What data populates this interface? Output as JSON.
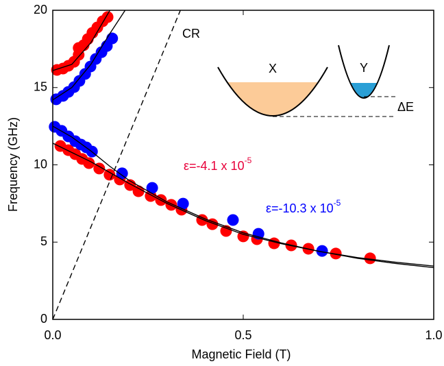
{
  "chart_data": {
    "type": "scatter",
    "x_label": "Magnetic Field (T)",
    "y_label": "Frequency (GHz)",
    "xlim": [
      0,
      1
    ],
    "ylim": [
      0,
      20
    ],
    "xticks": [
      {
        "value": 0,
        "label": "0.0"
      },
      {
        "value": 0.5,
        "label": "0.5"
      },
      {
        "value": 1,
        "label": "1.0"
      }
    ],
    "yticks": [
      0,
      5,
      10,
      15,
      20
    ],
    "grid": false,
    "series": [
      {
        "color": "#ff0000",
        "x": [
          0.02,
          0.041,
          0.059,
          0.077,
          0.095,
          0.122,
          0.149,
          0.176,
          0.203,
          0.225,
          0.257,
          0.284,
          0.311,
          0.338,
          0.392,
          0.419,
          0.455,
          0.5,
          0.536,
          0.581,
          0.626,
          0.671,
          0.743,
          0.833,
          0.011,
          0.027,
          0.041,
          0.056,
          0.068,
          0.068,
          0.081,
          0.092,
          0.104,
          0.117,
          0.131,
          0.144
        ],
        "values": [
          11.22,
          10.95,
          10.69,
          10.38,
          10.11,
          9.76,
          9.36,
          9.05,
          8.69,
          8.29,
          7.98,
          7.72,
          7.41,
          7.1,
          6.43,
          6.16,
          5.72,
          5.37,
          5.19,
          4.92,
          4.79,
          4.57,
          4.26,
          3.95,
          16.14,
          16.23,
          16.41,
          16.67,
          17.12,
          17.56,
          17.74,
          18.14,
          18.54,
          18.89,
          19.29,
          19.56
        ]
      },
      {
        "color": "#0000ff",
        "x": [
          0.009,
          0.027,
          0.041,
          0.056,
          0.07,
          0.085,
          0.099,
          0.113,
          0.128,
          0.142,
          0.156,
          0.005,
          0.023,
          0.041,
          0.059,
          0.074,
          0.088,
          0.103,
          0.182,
          0.261,
          0.342,
          0.473,
          0.54,
          0.707
        ],
        "values": [
          14.24,
          14.46,
          14.72,
          15.03,
          15.43,
          15.88,
          16.36,
          16.85,
          17.29,
          17.69,
          18.18,
          12.46,
          12.2,
          11.84,
          11.53,
          11.31,
          11.13,
          10.86,
          9.45,
          8.51,
          7.49,
          6.43,
          5.54,
          4.43
        ]
      }
    ],
    "lines": [
      {
        "color": "#000000",
        "x": [
          0.0,
          0.1,
          0.2,
          0.3,
          0.4,
          0.5,
          0.6,
          0.7,
          0.8,
          0.9,
          1.0
        ],
        "values": [
          11.4,
          10.2,
          8.8,
          7.5,
          6.4,
          5.5,
          4.9,
          4.4,
          4.0,
          3.7,
          3.45
        ]
      },
      {
        "color": "#000000",
        "x": [
          0.0,
          0.05,
          0.1,
          0.15,
          0.2,
          0.3,
          0.4,
          0.5,
          0.6,
          0.7,
          0.8,
          0.9,
          1.0
        ],
        "values": [
          12.5,
          11.8,
          10.9,
          9.9,
          9.0,
          7.6,
          6.5,
          5.6,
          4.95,
          4.4,
          3.95,
          3.62,
          3.35
        ]
      },
      {
        "color": "#000000",
        "x": [
          0.0,
          0.05,
          0.1,
          0.15,
          0.19
        ],
        "values": [
          14.2,
          15.0,
          16.5,
          18.5,
          20
        ]
      },
      {
        "color": "#000000",
        "x": [
          0.0,
          0.05,
          0.1,
          0.15
        ],
        "values": [
          16.1,
          16.5,
          17.9,
          20
        ]
      },
      {
        "name": "CR",
        "color": "#000000",
        "dashed": true,
        "x": [
          0,
          0.335
        ],
        "values": [
          0,
          20
        ]
      }
    ],
    "annotations": [
      {
        "text": "ε=-4.1 x 10",
        "superscript": "-5",
        "color": "#e8003a"
      },
      {
        "text": "ε=-10.3 x 10",
        "superscript": "-5",
        "color": "#0000ff"
      }
    ],
    "inset": {
      "left_label": "X",
      "right_label": "Y",
      "gap_label": "ΔE"
    }
  }
}
